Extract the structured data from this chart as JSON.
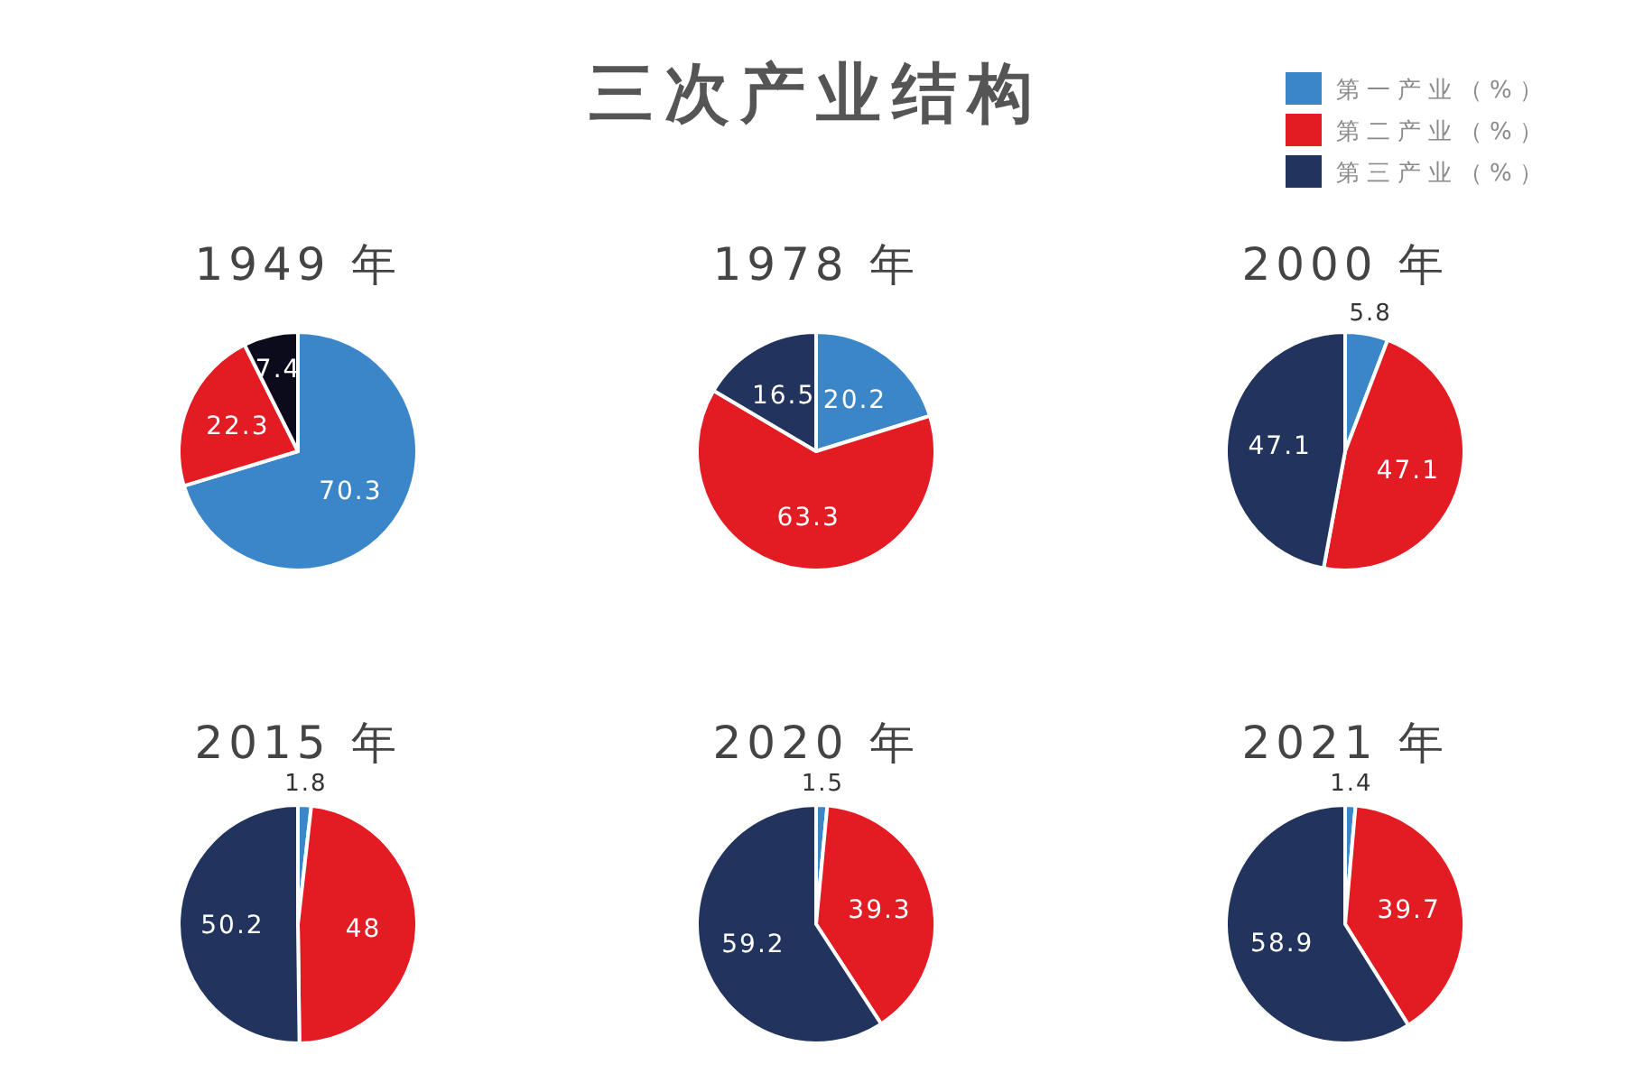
{
  "chart_data": [
    {
      "type": "pie",
      "subtitle": "1949 年",
      "categories": [
        null,
        null,
        null
      ],
      "values": [
        70.3,
        22.3,
        7.4
      ],
      "colors": [
        "#3a86c8",
        "#e31b23",
        "#0b0b1c"
      ],
      "data_labels": true
    },
    {
      "type": "pie",
      "title": "三次产业结构",
      "subtitle": "1978 年",
      "categories": [
        null,
        null,
        null
      ],
      "values": [
        20.2,
        63.3,
        16.5
      ],
      "colors": [
        "#3a86c8",
        "#e31b23",
        "#22345e"
      ],
      "data_labels": true
    },
    {
      "type": "pie",
      "subtitle": "2000 年",
      "categories": [
        "第一产业（%）",
        "第二产业（%）",
        "第三产业（%）"
      ],
      "values": [
        5.8,
        47.1,
        47.1
      ],
      "colors": [
        "#3a86c8",
        "#e31b23",
        "#22345e"
      ],
      "data_labels": true,
      "legend": "top"
    },
    {
      "type": "pie",
      "subtitle": "2015 年",
      "categories": [
        null,
        null,
        null
      ],
      "values": [
        1.8,
        48,
        50.2
      ],
      "colors": [
        "#3a86c8",
        "#e31b23",
        "#22345e"
      ],
      "data_labels": true
    },
    {
      "type": "pie",
      "subtitle": "2020 年",
      "categories": [
        null,
        null,
        null
      ],
      "values": [
        1.5,
        39.3,
        59.2
      ],
      "colors": [
        "#3a86c8",
        "#e31b23",
        "#22345e"
      ],
      "data_labels": true
    },
    {
      "type": "pie",
      "subtitle": "2021 年",
      "categories": [
        null,
        null,
        null
      ],
      "values": [
        1.4,
        39.7,
        58.9
      ],
      "colors": [
        "#3a86c8",
        "#e31b23",
        "#22345e"
      ],
      "data_labels": true
    }
  ]
}
